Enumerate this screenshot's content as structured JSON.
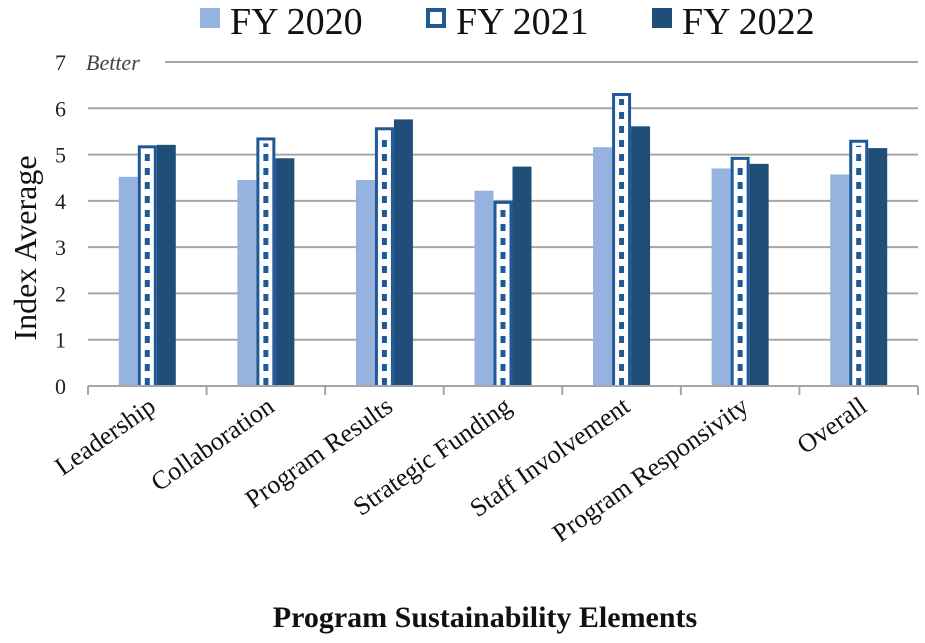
{
  "chart_data": {
    "type": "bar",
    "title": "",
    "xlabel": "Program Sustainability Elements",
    "ylabel": "Index Average",
    "ylim": [
      0,
      7
    ],
    "yticks": [
      0,
      1,
      2,
      3,
      4,
      5,
      6,
      7
    ],
    "grid": true,
    "legend_position": "top",
    "annotation": "Better",
    "categories": [
      "Leadership",
      "Collaboration",
      "Program Results",
      "Strategic Funding",
      "Staff Involvement",
      "Program Responsivity",
      "Overall"
    ],
    "series": [
      {
        "name": "FY 2020",
        "style": "solid-light",
        "color": "#95b3de",
        "values": [
          4.52,
          4.45,
          4.45,
          4.22,
          5.16,
          4.7,
          4.57
        ]
      },
      {
        "name": "FY 2021",
        "style": "dashed-outline",
        "color": "#1f5a96",
        "values": [
          5.2,
          5.37,
          5.59,
          4.0,
          6.33,
          4.95,
          5.32
        ]
      },
      {
        "name": "FY 2022",
        "style": "solid-dark",
        "color": "#1f4e79",
        "values": [
          5.21,
          4.92,
          5.76,
          4.74,
          5.61,
          4.8,
          5.14
        ]
      }
    ]
  }
}
